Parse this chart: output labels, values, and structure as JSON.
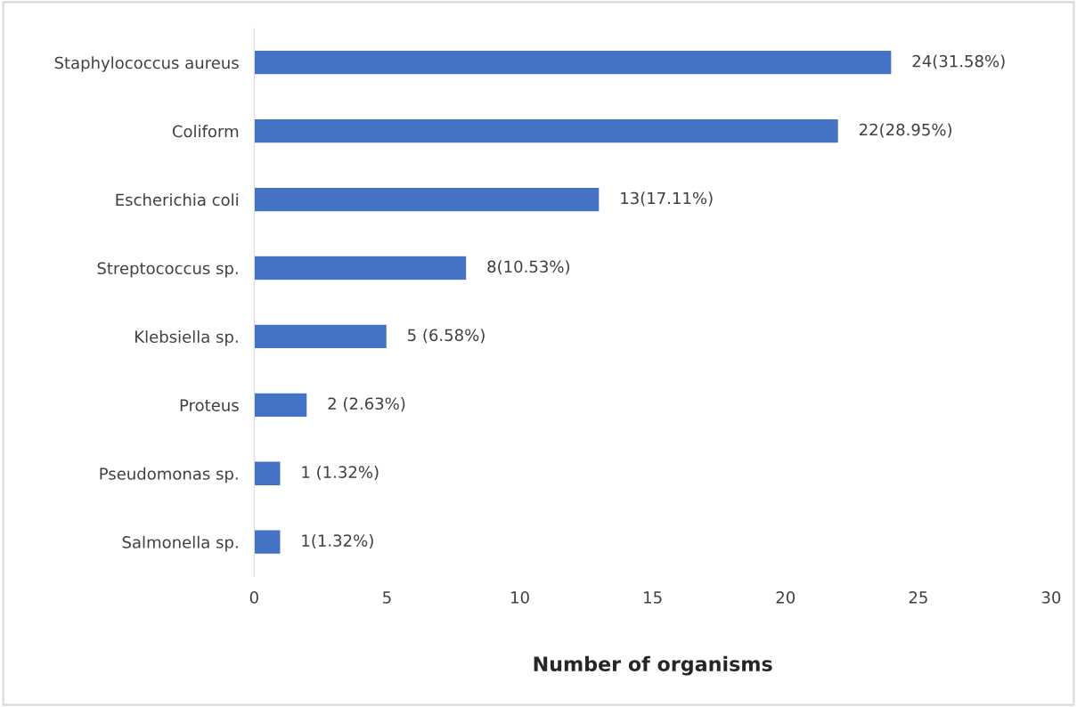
{
  "chart_data": {
    "type": "bar",
    "orientation": "horizontal",
    "xlabel": "Number of organisms",
    "categories": [
      "Staphylococcus aureus",
      "Coliform",
      "Escherichia coli",
      "Streptococcus sp.",
      "Klebsiella sp.",
      "Proteus",
      "Pseudomonas sp.",
      "Salmonella sp."
    ],
    "values": [
      24,
      22,
      13,
      8,
      5,
      2,
      1,
      1
    ],
    "value_labels": [
      "24(31.58%)",
      "22(28.95%)",
      "13(17.11%)",
      "8(10.53%)",
      "5 (6.58%)",
      "2 (2.63%)",
      "1 (1.32%)",
      "1(1.32%)"
    ],
    "color": "#4472c4",
    "xlim": [
      0,
      30
    ],
    "xticks": [
      0,
      5,
      10,
      15,
      20,
      25,
      30
    ],
    "grid": false,
    "legend": false
  }
}
